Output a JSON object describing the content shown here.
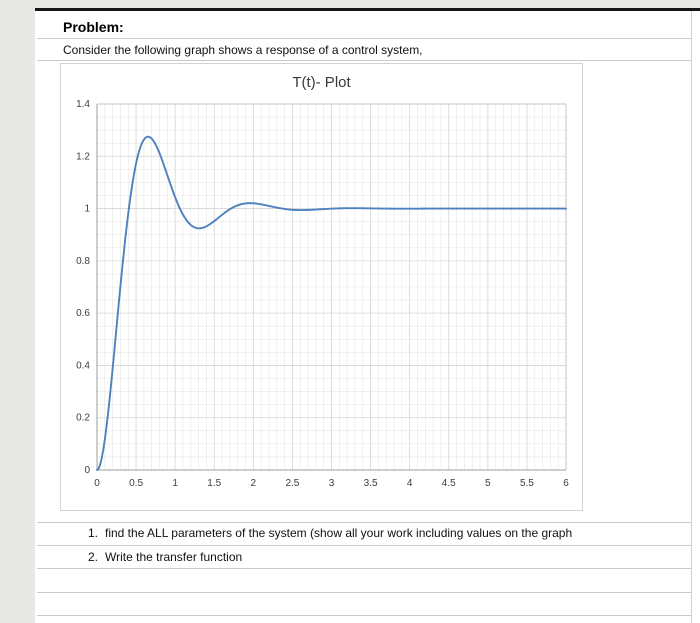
{
  "page": {
    "heading": "Problem:",
    "intro": "Consider the following graph shows a response of a control system,",
    "questions": [
      {
        "num": "1.",
        "text": "find the ALL parameters of the system (show all your work including values on the graph"
      },
      {
        "num": "2.",
        "text": "Write the transfer function"
      }
    ]
  },
  "chart_data": {
    "type": "line",
    "title": "T(t)- Plot",
    "xlabel": "",
    "ylabel": "",
    "xlim": [
      0,
      6
    ],
    "ylim": [
      0,
      1.4
    ],
    "x_ticks": [
      0,
      0.5,
      1,
      1.5,
      2,
      2.5,
      3,
      3.5,
      4,
      4.5,
      5,
      5.5,
      6
    ],
    "y_ticks": [
      0,
      0.2,
      0.4,
      0.6,
      0.8,
      1,
      1.2,
      1.4
    ],
    "grid": {
      "minor_x_step": 0.1,
      "minor_y_step": 0.05,
      "visible": true
    },
    "legend": "none",
    "line_color": "#4f81bd",
    "series": [
      {
        "name": "T(t)",
        "description": "second-order underdamped unit-step response, ~27% overshoot peaking near t=0.65, dip to ~0.93 near t=1.3, settling to 1",
        "model_params": {
          "zeta": 0.38,
          "wn": 5.2,
          "steady_state": 1
        },
        "x": [
          0,
          0.25,
          0.5,
          0.75,
          1,
          1.25,
          1.5,
          1.75,
          2,
          2.25,
          2.5,
          2.75,
          3,
          3.25,
          3.5,
          3.75,
          4,
          4.25,
          4.5,
          4.75,
          5,
          5.25,
          5.5,
          5.75,
          6
        ],
        "y": [
          0,
          0.546,
          1.173,
          1.245,
          1.043,
          0.928,
          0.952,
          1.006,
          1.02,
          1.007,
          0.995,
          0.995,
          0.999,
          1.002,
          1.001,
          1.0,
          1.0,
          1.0,
          1.0,
          1.0,
          1.0,
          1.0,
          1.0,
          1.0,
          1.0
        ]
      }
    ]
  }
}
